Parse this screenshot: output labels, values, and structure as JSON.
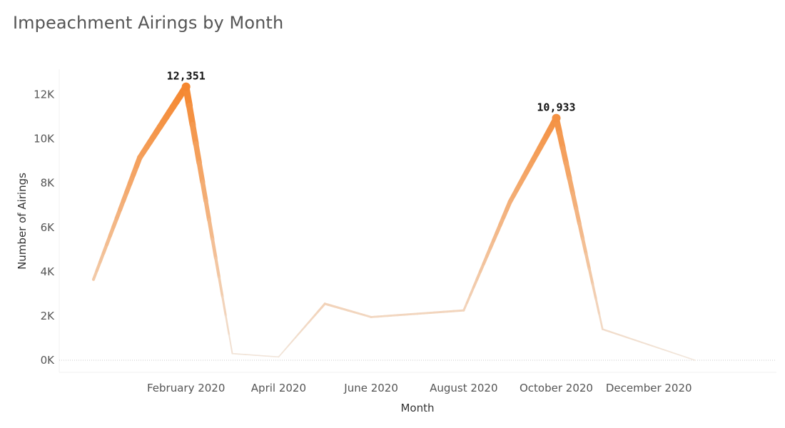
{
  "title": "Impeachment Airings by Month",
  "chart_data": {
    "type": "line",
    "title": "Impeachment Airings by Month",
    "xlabel": "Month",
    "ylabel": "Number of Airings",
    "x": [
      "2019-12",
      "2020-01",
      "2020-02",
      "2020-03",
      "2020-04",
      "2020-05",
      "2020-06",
      "2020-07",
      "2020-08",
      "2020-09",
      "2020-10",
      "2020-11",
      "2020-12",
      "2021-01"
    ],
    "x_tick_labels": [
      "February 2020",
      "April 2020",
      "June 2020",
      "August 2020",
      "October 2020",
      "December 2020"
    ],
    "y_tick_labels": [
      "0K",
      "2K",
      "4K",
      "6K",
      "8K",
      "10K",
      "12K"
    ],
    "values": [
      3650,
      9150,
      12351,
      300,
      150,
      2550,
      1950,
      2100,
      2250,
      7150,
      10933,
      1400,
      700,
      0
    ],
    "ylim": [
      0,
      12800
    ],
    "grid": false,
    "line_color_high": "#f5842a",
    "line_color_low": "#f1e6dc",
    "annotations": [
      {
        "label": "12,351",
        "x": "2020-02",
        "value": 12351
      },
      {
        "label": "10,933",
        "x": "2020-10",
        "value": 10933
      }
    ]
  }
}
